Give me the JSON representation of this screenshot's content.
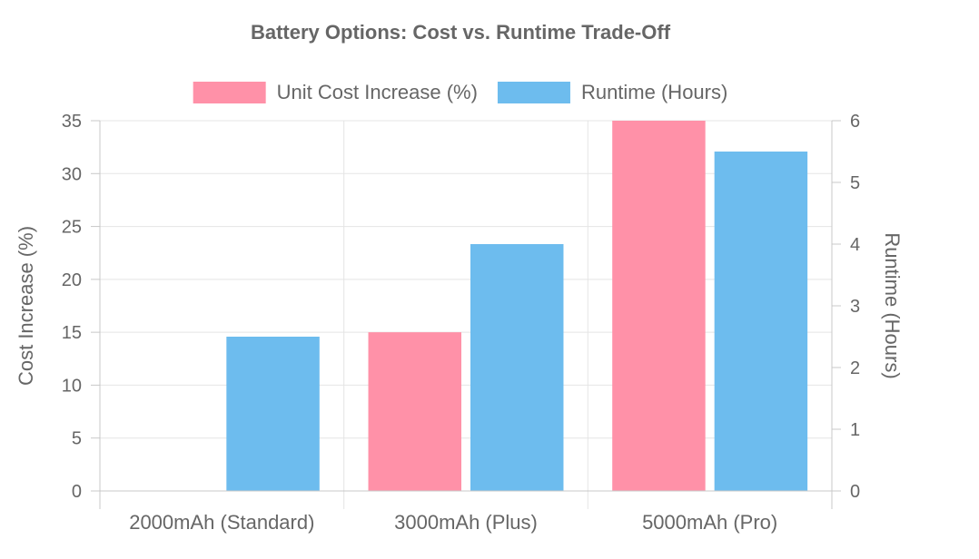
{
  "chart_data": {
    "type": "bar",
    "title": "Battery Options: Cost vs. Runtime Trade-Off",
    "categories": [
      "2000mAh (Standard)",
      "3000mAh (Plus)",
      "5000mAh (Pro)"
    ],
    "series": [
      {
        "name": "Unit Cost Increase (%)",
        "axis": "left",
        "color": "#FF91A8",
        "values": [
          0,
          15,
          35
        ]
      },
      {
        "name": "Runtime (Hours)",
        "axis": "right",
        "color": "#6DBCEE",
        "values": [
          2.5,
          4,
          5.5
        ]
      }
    ],
    "y_left": {
      "label": "Cost Increase (%)",
      "min": 0,
      "max": 35,
      "ticks": [
        "0",
        "5",
        "10",
        "15",
        "20",
        "25",
        "30",
        "35"
      ]
    },
    "y_right": {
      "label": "Runtime (Hours)",
      "min": 0,
      "max": 6,
      "ticks": [
        "0",
        "1",
        "2",
        "3",
        "4",
        "5",
        "6"
      ]
    },
    "grid": true,
    "legend_position": "top-center"
  }
}
